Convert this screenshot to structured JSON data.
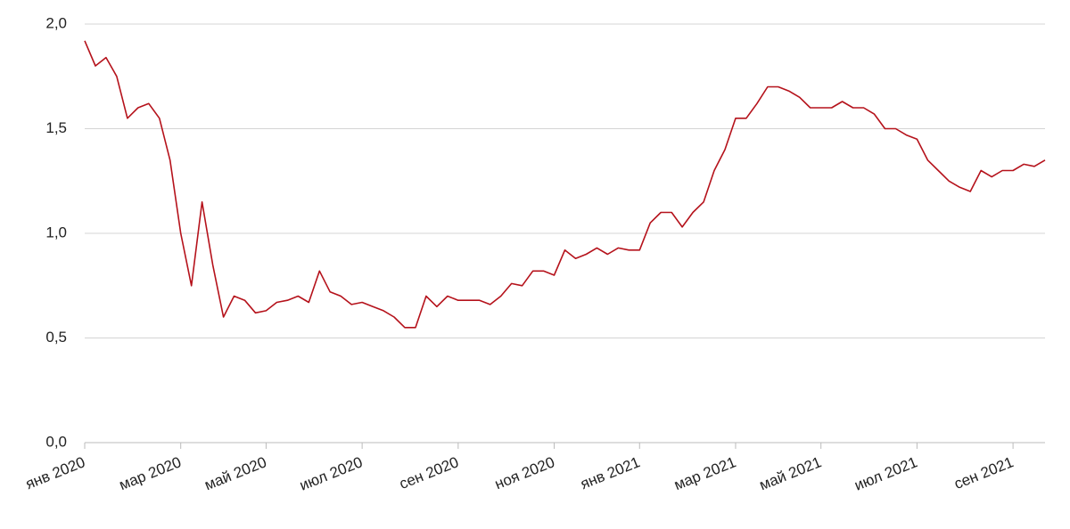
{
  "chart_data": {
    "type": "line",
    "categories": [
      "янв 2020",
      null,
      null,
      null,
      null,
      null,
      null,
      null,
      null,
      "мар 2020",
      null,
      null,
      null,
      null,
      null,
      null,
      null,
      "май 2020",
      null,
      null,
      null,
      null,
      null,
      null,
      null,
      null,
      "июл 2020",
      null,
      null,
      null,
      null,
      null,
      null,
      null,
      null,
      "сен 2020",
      null,
      null,
      null,
      null,
      null,
      null,
      null,
      null,
      "ноя 2020",
      null,
      null,
      null,
      null,
      null,
      null,
      null,
      "янв 2021",
      null,
      null,
      null,
      null,
      null,
      null,
      null,
      null,
      "мар 2021",
      null,
      null,
      null,
      null,
      null,
      null,
      null,
      "май 2021",
      null,
      null,
      null,
      null,
      null,
      null,
      null,
      null,
      "июл 2021",
      null,
      null,
      null,
      null,
      null,
      null,
      null,
      null,
      "сен 2021",
      null,
      null,
      null
    ],
    "values": [
      1.92,
      1.8,
      1.84,
      1.75,
      1.55,
      1.6,
      1.62,
      1.55,
      1.35,
      1.0,
      0.75,
      1.15,
      0.85,
      0.6,
      0.7,
      0.68,
      0.62,
      0.63,
      0.67,
      0.68,
      0.7,
      0.67,
      0.82,
      0.72,
      0.7,
      0.66,
      0.67,
      0.65,
      0.63,
      0.6,
      0.55,
      0.55,
      0.7,
      0.65,
      0.7,
      0.68,
      0.68,
      0.68,
      0.66,
      0.7,
      0.76,
      0.75,
      0.82,
      0.82,
      0.8,
      0.92,
      0.88,
      0.9,
      0.93,
      0.9,
      0.93,
      0.92,
      0.92,
      1.05,
      1.1,
      1.1,
      1.03,
      1.1,
      1.15,
      1.3,
      1.4,
      1.55,
      1.55,
      1.62,
      1.7,
      1.7,
      1.68,
      1.65,
      1.6,
      1.6,
      1.6,
      1.63,
      1.6,
      1.6,
      1.57,
      1.5,
      1.5,
      1.47,
      1.45,
      1.35,
      1.3,
      1.25,
      1.22,
      1.2,
      1.3,
      1.27,
      1.3,
      1.3,
      1.33,
      1.32,
      1.35
    ],
    "color": "#b5121b",
    "ylim": [
      0,
      2
    ],
    "yticks": [
      {
        "value": 0,
        "label": "0,0"
      },
      {
        "value": 0.5,
        "label": "0,5"
      },
      {
        "value": 1,
        "label": "1,0"
      },
      {
        "value": 1.5,
        "label": "1,5"
      },
      {
        "value": 2,
        "label": "2,0"
      }
    ],
    "grid": true
  }
}
